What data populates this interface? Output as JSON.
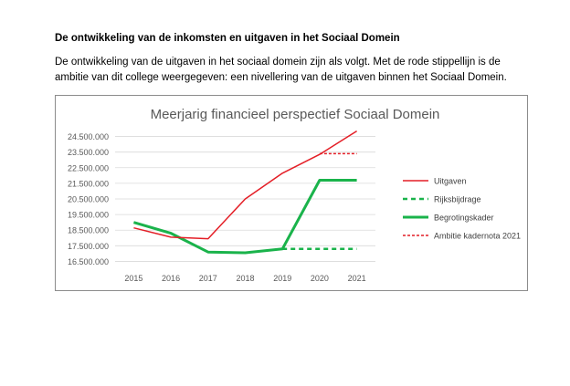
{
  "document": {
    "heading": "De ontwikkeling van de inkomsten en uitgaven in het Sociaal Domein",
    "paragraph_line1": "De ontwikkeling van de uitgaven in het sociaal domein zijn als volgt. Met de rode stippellijn is de",
    "paragraph_line2": "ambitie van dit college weergegeven: een nivellering van de uitgaven binnen het Sociaal Domein."
  },
  "chart_data": {
    "type": "line",
    "title": "Meerjarig financieel perspectief Sociaal Domein",
    "x": [
      "2015",
      "2016",
      "2017",
      "2018",
      "2019",
      "2020",
      "2021"
    ],
    "ylim": [
      16000000,
      25000000
    ],
    "yticks": [
      16500000,
      17500000,
      18500000,
      19500000,
      20500000,
      21500000,
      22500000,
      23500000,
      24500000
    ],
    "ytick_labels": [
      "16.500.000",
      "17.500.000",
      "18.500.000",
      "19.500.000",
      "20.500.000",
      "21.500.000",
      "22.500.000",
      "23.500.000",
      "24.500.000"
    ],
    "grid": true,
    "legend_position": "right",
    "series": [
      {
        "name": "Uitgaven",
        "color": "#e41e26",
        "style": "solid",
        "width": 1.5,
        "values": [
          18650000,
          18050000,
          17950000,
          20500000,
          22150000,
          23350000,
          24850000
        ]
      },
      {
        "name": "Rijksbijdrage",
        "color": "#1ab34b",
        "style": "dashed",
        "width": 2.5,
        "values": [
          null,
          null,
          null,
          null,
          17300000,
          17300000,
          17300000
        ]
      },
      {
        "name": "Begrotingskader",
        "color": "#1ab34b",
        "style": "solid",
        "width": 3,
        "values": [
          19000000,
          18300000,
          17100000,
          17050000,
          17300000,
          21700000,
          21700000
        ]
      },
      {
        "name": "Ambitie kadernota 2021",
        "color": "#e41e26",
        "style": "dashed",
        "width": 1.5,
        "values": [
          null,
          null,
          null,
          null,
          null,
          23400000,
          23400000
        ]
      }
    ]
  }
}
